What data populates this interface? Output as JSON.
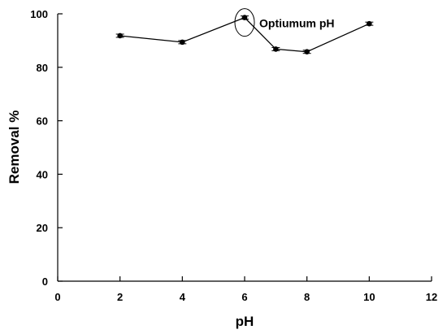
{
  "chart_data": {
    "type": "line",
    "title": "",
    "xlabel": "pH",
    "ylabel": "Removal %",
    "xlim": [
      0,
      12
    ],
    "ylim": [
      0,
      100
    ],
    "xticks": [
      0,
      2,
      4,
      6,
      8,
      10,
      12
    ],
    "yticks": [
      0,
      20,
      40,
      60,
      80,
      100
    ],
    "grid": false,
    "series": [
      {
        "x": [
          2,
          4,
          6,
          7,
          8,
          10
        ],
        "y": [
          91.8,
          89.4,
          98.6,
          86.8,
          85.8,
          96.3
        ],
        "error": [
          0.6,
          0.6,
          0.6,
          0.6,
          0.6,
          0.6
        ],
        "color": "#000000",
        "marker": "circle"
      }
    ],
    "annotations": [
      {
        "text": "Optiumum pH",
        "x": 6,
        "y": 98.6,
        "style": "ellipse-around-point"
      }
    ]
  }
}
